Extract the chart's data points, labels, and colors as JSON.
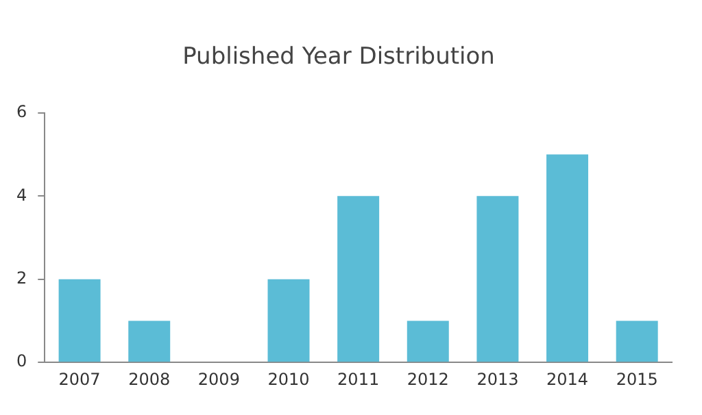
{
  "chart_data": {
    "type": "bar",
    "title": "Published Year Distribution",
    "categories": [
      "2007",
      "2008",
      "2009",
      "2010",
      "2011",
      "2012",
      "2013",
      "2014",
      "2015"
    ],
    "values": [
      2,
      1,
      0,
      2,
      4,
      1,
      4,
      5,
      1
    ],
    "color": "#5bbcd6",
    "ylim": [
      0,
      6
    ],
    "yticks": [
      0,
      2,
      4,
      6
    ],
    "grid": false,
    "legend": false
  }
}
